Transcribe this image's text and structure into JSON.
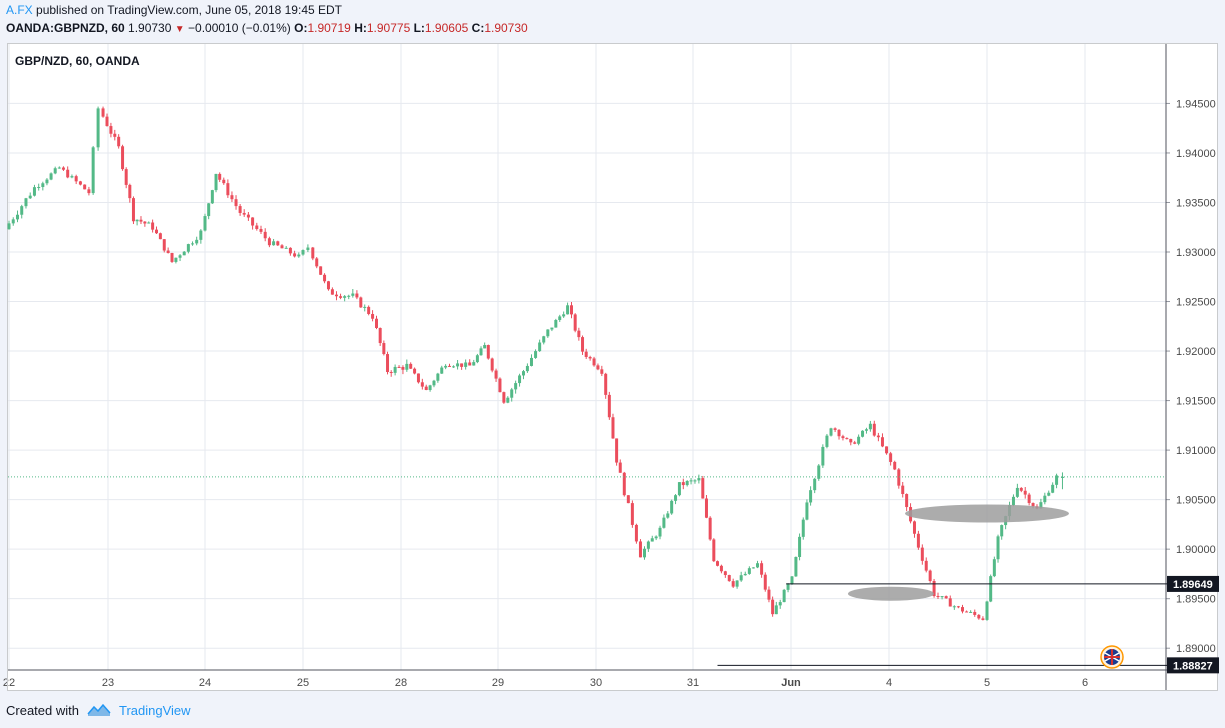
{
  "header": {
    "author": "A.FX",
    "published_text": "published on TradingView.com, June 05, 2018 19:45 EDT",
    "symbol_line": "OANDA:GBPNZD, 60",
    "last_price": "1.90730",
    "change": "−0.00010 (−0.01%)",
    "open_label": "O:",
    "open_value": "1.90719",
    "high_label": "H:",
    "high_value": "1.90775",
    "low_label": "L:",
    "low_value": "1.90605",
    "close_label": "C:",
    "close_value": "1.90730"
  },
  "footer": {
    "created_with": "Created with",
    "brand": "TradingView"
  },
  "chart_data": {
    "type": "candlestick",
    "title": "GBP/NZD, 60, OANDA",
    "y_ticks": [
      "1.94500",
      "1.94000",
      "1.93500",
      "1.93000",
      "1.92500",
      "1.92000",
      "1.91500",
      "1.91000",
      "1.90500",
      "1.90000",
      "1.89500",
      "1.89000"
    ],
    "ylim": [
      1.8878,
      1.951
    ],
    "x_ticks": [
      "22",
      "23",
      "24",
      "25",
      "28",
      "29",
      "30",
      "31",
      "Jun",
      "4",
      "5",
      "6"
    ],
    "current_price_line": 1.9073,
    "price_labels": [
      {
        "value": 1.89649,
        "text": "1.89649"
      },
      {
        "value": 1.88827,
        "text": "1.88827"
      }
    ],
    "horizontal_lines": [
      {
        "value": 1.89649,
        "from_day": "31"
      },
      {
        "value": 1.88827,
        "from_day": "31"
      }
    ],
    "zones": [
      {
        "center_day": "5",
        "price": 1.9035
      },
      {
        "center_day": "4",
        "price": 1.8955
      }
    ],
    "colors": {
      "up": "#53b987",
      "down": "#eb4d5c",
      "grid": "#e6e9ef",
      "background": "#ffffff",
      "axis_text": "#4a4a4a",
      "zone": "#9e9e9e",
      "price_label_bg": "#131722"
    },
    "daily_path": {
      "days": [
        "22",
        "23",
        "24",
        "25",
        "28",
        "29",
        "30",
        "31",
        "Jun",
        "4",
        "5",
        "6"
      ],
      "anchors": [
        [
          0,
          1.9323,
          0.0008
        ],
        [
          0.3,
          1.9365,
          0.0006
        ],
        [
          0.55,
          1.9385,
          0.0006
        ],
        [
          0.85,
          1.936,
          0.0007
        ],
        [
          0.95,
          1.9445,
          0.0007
        ],
        [
          1.15,
          1.9405,
          0.0008
        ],
        [
          1.3,
          1.9335,
          0.0007
        ],
        [
          1.5,
          1.9325,
          0.0006
        ],
        [
          1.7,
          1.929,
          0.0007
        ],
        [
          2.0,
          1.932,
          0.0006
        ],
        [
          2.15,
          1.938,
          0.0007
        ],
        [
          2.4,
          1.934,
          0.0007
        ],
        [
          2.7,
          1.931,
          0.0006
        ],
        [
          3.0,
          1.9295,
          0.0006
        ],
        [
          3.1,
          1.9305,
          0.0006
        ],
        [
          3.3,
          1.926,
          0.0008
        ],
        [
          3.55,
          1.9255,
          0.0007
        ],
        [
          3.75,
          1.9235,
          0.0007
        ],
        [
          3.9,
          1.918,
          0.0008
        ],
        [
          4.1,
          1.9185,
          0.0006
        ],
        [
          4.3,
          1.916,
          0.0006
        ],
        [
          4.5,
          1.9188,
          0.0006
        ],
        [
          4.75,
          1.9185,
          0.0006
        ],
        [
          4.9,
          1.9205,
          0.0006
        ],
        [
          5.1,
          1.915,
          0.0008
        ],
        [
          5.3,
          1.918,
          0.0007
        ],
        [
          5.55,
          1.922,
          0.0006
        ],
        [
          5.75,
          1.9245,
          0.0007
        ],
        [
          5.9,
          1.92,
          0.0006
        ],
        [
          6.1,
          1.918,
          0.0007
        ],
        [
          6.25,
          1.909,
          0.0008
        ],
        [
          6.5,
          1.8995,
          0.0006
        ],
        [
          6.7,
          1.902,
          0.0006
        ],
        [
          6.9,
          1.9065,
          0.0007
        ],
        [
          7.1,
          1.907,
          0.0006
        ],
        [
          7.25,
          1.899,
          0.0007
        ],
        [
          7.45,
          1.8965,
          0.0006
        ],
        [
          7.7,
          1.8985,
          0.0006
        ],
        [
          7.85,
          1.8935,
          0.0006
        ],
        [
          8.05,
          1.897,
          0.0007
        ],
        [
          8.2,
          1.905,
          0.0008
        ],
        [
          8.45,
          1.9125,
          0.0006
        ],
        [
          8.65,
          1.9105,
          0.0006
        ],
        [
          8.85,
          1.9125,
          0.0007
        ],
        [
          9.1,
          1.908,
          0.0008
        ],
        [
          9.3,
          1.9015,
          0.0007
        ],
        [
          9.5,
          1.8955,
          0.0006
        ],
        [
          9.75,
          1.894,
          0.0006
        ],
        [
          10.0,
          1.893,
          0.0006
        ],
        [
          10.15,
          1.901,
          0.0008
        ],
        [
          10.35,
          1.9065,
          0.0007
        ],
        [
          10.55,
          1.904,
          0.0006
        ],
        [
          10.75,
          1.9073,
          0.0004
        ]
      ]
    }
  }
}
